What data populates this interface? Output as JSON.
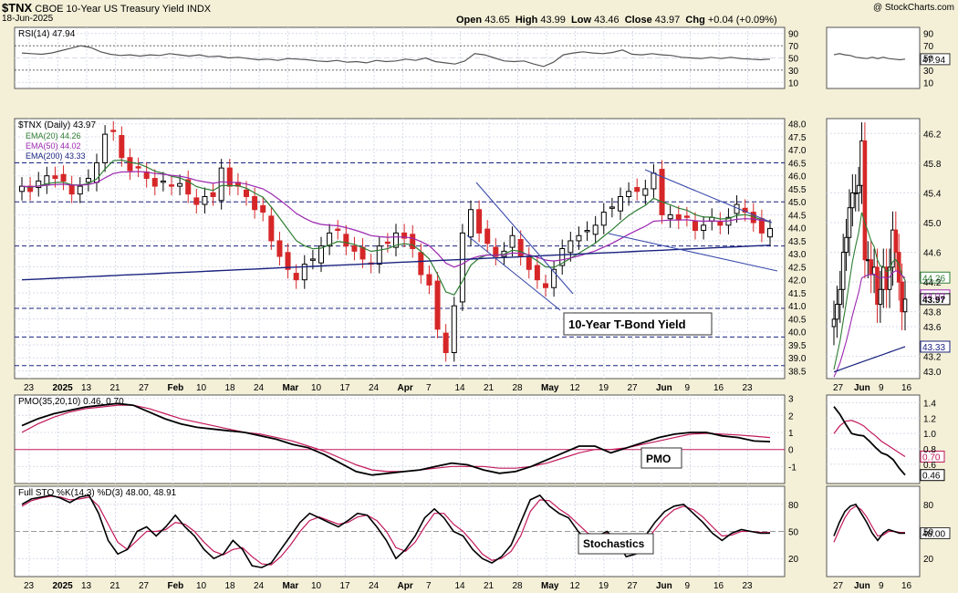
{
  "header": {
    "ticker": "$TNX",
    "name": "CBOE 10-Year US Treasury Yield",
    "exchange": "INDX",
    "date": "18-Jun-2025",
    "copyright": "@ StockCharts.com",
    "ohlc": {
      "open_label": "Open",
      "open": "43.65",
      "high_label": "High",
      "high": "43.99",
      "low_label": "Low",
      "low": "43.46",
      "close_label": "Close",
      "close": "43.97",
      "chg_label": "Chg",
      "chg": "+0.04 (+0.09%)"
    }
  },
  "colors": {
    "bg": "#f4f0d8",
    "plot_bg": "#ffffff",
    "grid": "#d8dce8",
    "up": "#000000",
    "down": "#d62728",
    "ema20": "#2e7d32",
    "ema50": "#9c27b0",
    "ema200": "#1a237e",
    "trend": "#3949ab",
    "pmo": "#000000",
    "pmo_signal": "#c2185b",
    "sto_k": "#000000",
    "sto_d": "#c2185b",
    "zero_line": "#c2185b",
    "level": "#1a237e"
  },
  "rsi": {
    "label": "RSI(14) 47.94",
    "ticks": [
      90,
      70,
      50,
      30,
      10
    ],
    "tag": "47.94"
  },
  "price": {
    "label": "$TNX (Daily) 43.97",
    "legend": [
      {
        "text": "EMA(20) 44.26",
        "color": "#2e7d32"
      },
      {
        "text": "EMA(50) 44.02",
        "color": "#9c27b0"
      },
      {
        "text": "EMA(200) 43.33",
        "color": "#1a237e"
      }
    ],
    "ticks": [
      48.0,
      47.5,
      47.0,
      46.5,
      46.0,
      45.5,
      45.0,
      44.5,
      44.0,
      43.5,
      43.0,
      42.5,
      42.0,
      41.5,
      41.0,
      40.5,
      40.0,
      39.5,
      39.0,
      38.5
    ],
    "tick_labels": [
      "48.0",
      "47.5",
      "47.0",
      "46.5",
      "46.0",
      "45.5",
      "45.0",
      "44.5",
      "44.0",
      "43.5",
      "43.0",
      "42.5",
      "42.0",
      "41.5",
      "41.0",
      "40.5",
      "40.0",
      "39.5",
      "39.0",
      "38.5"
    ],
    "zoom_ticks": [
      46.2,
      45.8,
      45.4,
      45.0,
      44.6,
      44.2,
      43.8,
      43.6,
      43.2,
      43.0
    ],
    "zoom_tick_labels": [
      "46.2",
      "45.8",
      "45.4",
      "45.0",
      "44.6",
      "44.2",
      "43.8",
      "43.6",
      "43.2",
      "43.0"
    ],
    "zoom_tags": [
      "44.26",
      "44.02",
      "43.97",
      "43.33"
    ],
    "annotation": "10-Year T-Bond Yield"
  },
  "pmo": {
    "label": "PMO(35,20,10) 0.46, 0.70",
    "ticks": [
      3,
      2,
      1,
      0,
      -1
    ],
    "zoom_ticks": [
      "1.4",
      "1.2",
      "1.0",
      "0.8",
      "0.6"
    ],
    "tags": [
      "0.70",
      "0.46"
    ],
    "annotation": "PMO"
  },
  "sto": {
    "label": "Full STO %K(14,3) %D(3) 48.00, 48.91",
    "ticks": [
      80,
      50,
      20
    ],
    "tag": "48.00",
    "annotation": "Stochastics"
  },
  "xaxis": {
    "labels": [
      "23",
      "2025",
      "13",
      "21",
      "27",
      "Feb",
      "10",
      "18",
      "24",
      "Mar",
      "10",
      "17",
      "24",
      "Apr",
      "7",
      "14",
      "21",
      "28",
      "May",
      "12",
      "19",
      "27",
      "Jun",
      "9",
      "16",
      "23"
    ],
    "zoom_labels": [
      "27",
      "Jun",
      "9",
      "16"
    ]
  },
  "chart_data": [
    {
      "type": "line",
      "name": "RSI",
      "title": "RSI(14) 47.94",
      "ylim": [
        0,
        100
      ],
      "values": [
        58,
        57,
        56,
        58,
        62,
        66,
        70,
        67,
        60,
        56,
        54,
        55,
        53,
        55,
        54,
        57,
        55,
        53,
        55,
        52,
        53,
        50,
        51,
        49,
        47,
        48,
        46,
        49,
        48,
        47,
        45,
        44,
        46,
        43,
        44,
        42,
        46,
        44,
        45,
        48,
        46,
        50,
        44,
        42,
        40,
        45,
        57,
        55,
        50,
        45,
        44,
        45,
        40,
        36,
        43,
        55,
        58,
        60,
        58,
        57,
        59,
        63,
        56,
        55,
        57,
        55,
        54,
        51,
        50,
        49,
        51,
        49,
        51,
        49,
        48,
        47,
        48
      ]
    },
    {
      "type": "line",
      "name": "Price",
      "title": "$TNX (Daily) 43.97",
      "ylim": [
        38.2,
        48.2
      ],
      "values": [
        45.6,
        45.4,
        45.8,
        46.0,
        45.9,
        45.8,
        45.3,
        45.6,
        45.9,
        46.5,
        47.6,
        47.7,
        46.7,
        46.2,
        46.3,
        45.9,
        45.6,
        45.8,
        45.6,
        45.7,
        45.3,
        44.9,
        45.2,
        45.2,
        46.3,
        45.6,
        45.6,
        45.2,
        44.7,
        44.6,
        43.5,
        42.9,
        42.4,
        42.0,
        42.6,
        42.8,
        43.3,
        43.8,
        43.9,
        43.3,
        43.1,
        42.8,
        42.6,
        43.3,
        43.4,
        43.8,
        43.6,
        43.2,
        42.2,
        41.8,
        40.1,
        39.2,
        41.0,
        43.8,
        44.7,
        43.8,
        43.4,
        42.9,
        43.1,
        43.7,
        42.9,
        42.4,
        42.0,
        41.7,
        42.4,
        43.2,
        43.5,
        43.7,
        43.9,
        44.1,
        44.6,
        44.8,
        45.2,
        45.4,
        45.4,
        45.5,
        46.1,
        44.5,
        44.5,
        44.3,
        44.4,
        43.9,
        44.1,
        44.4,
        44.1,
        44.4,
        44.9,
        44.6,
        44.2,
        43.8,
        43.97
      ]
    },
    {
      "type": "line",
      "name": "PMO",
      "title": "PMO(35,20,10) 0.46, 0.70",
      "ylim": [
        -2,
        3.2
      ],
      "series": [
        {
          "name": "PMO",
          "values": [
            1.4,
            1.8,
            2.1,
            2.3,
            2.5,
            2.6,
            2.7,
            2.6,
            2.2,
            1.8,
            1.5,
            1.3,
            1.2,
            1.1,
            1.0,
            0.8,
            0.6,
            0.3,
            0.1,
            -0.3,
            -0.8,
            -1.3,
            -1.5,
            -1.4,
            -1.3,
            -1.2,
            -1.0,
            -0.8,
            -0.9,
            -1.2,
            -1.4,
            -1.3,
            -1.0,
            -0.6,
            -0.2,
            0.2,
            0.2,
            -0.2,
            0.1,
            0.4,
            0.7,
            0.9,
            1.0,
            1.0,
            0.8,
            0.7,
            0.5,
            0.46
          ]
        },
        {
          "name": "PMO Signal",
          "values": [
            1.0,
            1.5,
            1.9,
            2.2,
            2.4,
            2.5,
            2.6,
            2.6,
            2.4,
            2.1,
            1.8,
            1.6,
            1.4,
            1.2,
            1.0,
            0.9,
            0.7,
            0.5,
            0.2,
            -0.1,
            -0.5,
            -0.9,
            -1.2,
            -1.3,
            -1.3,
            -1.2,
            -1.1,
            -1.0,
            -1.0,
            -1.0,
            -1.1,
            -1.1,
            -1.0,
            -0.8,
            -0.5,
            -0.2,
            0.0,
            0.0,
            0.1,
            0.3,
            0.5,
            0.7,
            0.9,
            0.95,
            0.9,
            0.85,
            0.78,
            0.7
          ]
        }
      ]
    },
    {
      "type": "line",
      "name": "Full STO",
      "title": "Full STO %K(14,3) %D(3) 48.00, 48.91",
      "ylim": [
        0,
        100
      ],
      "series": [
        {
          "name": "%K",
          "values": [
            80,
            86,
            88,
            90,
            87,
            82,
            88,
            90,
            70,
            40,
            25,
            30,
            50,
            55,
            45,
            55,
            68,
            55,
            45,
            30,
            20,
            25,
            40,
            30,
            12,
            10,
            15,
            30,
            45,
            60,
            70,
            65,
            60,
            55,
            62,
            70,
            68,
            55,
            40,
            20,
            30,
            45,
            65,
            75,
            65,
            50,
            45,
            30,
            20,
            15,
            22,
            35,
            60,
            85,
            90,
            78,
            70,
            65,
            50,
            40,
            45,
            50,
            40,
            22,
            25,
            45,
            60,
            72,
            78,
            80,
            70,
            60,
            48,
            40,
            48,
            52,
            50,
            48,
            48
          ]
        },
        {
          "name": "%D",
          "values": [
            78,
            84,
            87,
            89,
            88,
            85,
            86,
            88,
            78,
            58,
            38,
            30,
            40,
            50,
            50,
            52,
            60,
            58,
            50,
            38,
            28,
            24,
            30,
            32,
            22,
            14,
            13,
            22,
            35,
            50,
            62,
            66,
            62,
            58,
            60,
            66,
            68,
            62,
            50,
            32,
            28,
            38,
            55,
            70,
            70,
            58,
            50,
            38,
            25,
            18,
            20,
            28,
            45,
            72,
            85,
            84,
            75,
            68,
            58,
            48,
            45,
            48,
            44,
            30,
            26,
            38,
            52,
            65,
            74,
            78,
            74,
            66,
            55,
            45,
            46,
            50,
            50,
            49,
            48.91
          ]
        }
      ]
    }
  ]
}
